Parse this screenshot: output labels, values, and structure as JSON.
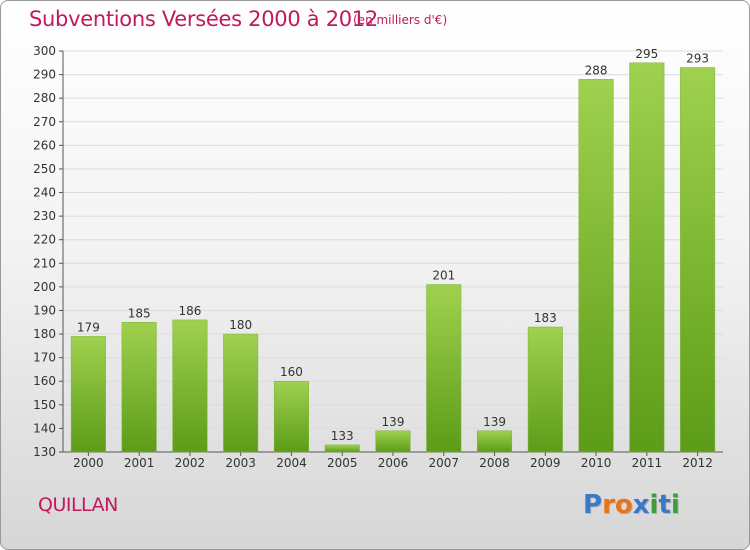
{
  "header": {
    "title": "Subventions Versées 2000 à 2012",
    "subtitle": "(en milliers d'€)"
  },
  "footer": {
    "commune": "QUILLAN",
    "logo": [
      "P",
      "r",
      "o",
      "x",
      "i",
      "t",
      "i"
    ]
  },
  "colors": {
    "title": "#c01a5c",
    "bar_top": "#9fd14f",
    "bar_bottom": "#5c9c18",
    "logo": [
      "#3a78c8",
      "#e8731a",
      "#e8731a",
      "#3a78c8",
      "#3a9f3a",
      "#3a78c8",
      "#3a9f3a"
    ]
  },
  "chart_data": {
    "type": "bar",
    "title": "Subventions Versées 2000 à 2012",
    "subtitle": "(en milliers d'€)",
    "categories": [
      "2000",
      "2001",
      "2002",
      "2003",
      "2004",
      "2005",
      "2006",
      "2007",
      "2008",
      "2009",
      "2010",
      "2011",
      "2012"
    ],
    "values": [
      179,
      185,
      186,
      180,
      160,
      133,
      139,
      201,
      139,
      183,
      288,
      295,
      293
    ],
    "ylim": [
      130,
      300
    ],
    "yticks": [
      130,
      140,
      150,
      160,
      170,
      180,
      190,
      200,
      210,
      220,
      230,
      240,
      250,
      260,
      270,
      280,
      290,
      300
    ],
    "grid": true
  }
}
